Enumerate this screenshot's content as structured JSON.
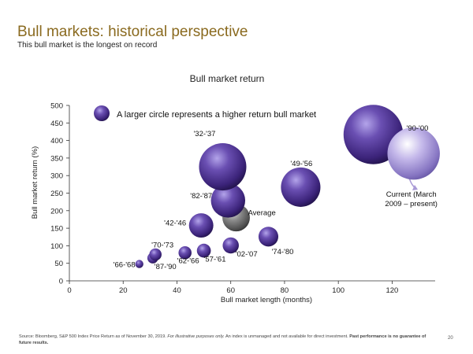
{
  "header": {
    "title": "Bull markets: historical perspective",
    "subtitle": "This bull market is the longest on record"
  },
  "legend_note": "A larger circle represents a higher return bull market",
  "footer": {
    "source_text": "Source: Bloomberg, S&P 500 Index Price Return as of November 30, 2019.",
    "illustrative_text": "For illustrative purposes only.",
    "disclaimer_text": "An index is unmanaged and not available for direct investment.",
    "bold_text": "Past performance is no guarantee of future results.",
    "page_number": "20"
  },
  "colors": {
    "title": "#8a6a1f",
    "bubble_purple": "#4b2f8c",
    "bubble_current": "#a99ad6",
    "bubble_average": "#6e6e6e",
    "current_arrow": "#a99ad6"
  },
  "chart_data": {
    "type": "scatter",
    "title": "Bull market return",
    "xlabel": "Bull market length (months)",
    "ylabel": "Bull market return (%)",
    "xlim": [
      0,
      136
    ],
    "ylim": [
      0,
      500
    ],
    "x_ticks": [
      0,
      20,
      40,
      60,
      80,
      100,
      120
    ],
    "y_ticks": [
      0,
      50,
      100,
      150,
      200,
      250,
      300,
      350,
      400,
      450,
      500
    ],
    "grid": false,
    "points": [
      {
        "label": "'66-'68",
        "x": 26,
        "y": 48,
        "color": "purple"
      },
      {
        "label": "'87-'90",
        "x": 31,
        "y": 65,
        "color": "purple"
      },
      {
        "label": "'70-'73",
        "x": 32,
        "y": 75,
        "color": "purple"
      },
      {
        "label": "'62-'66",
        "x": 43,
        "y": 80,
        "color": "purple"
      },
      {
        "label": "'57-'61",
        "x": 50,
        "y": 86,
        "color": "purple"
      },
      {
        "label": "'02-'07",
        "x": 60,
        "y": 101,
        "color": "purple"
      },
      {
        "label": "'74-'80",
        "x": 74,
        "y": 126,
        "color": "purple"
      },
      {
        "label": "'42-'46",
        "x": 49,
        "y": 158,
        "color": "purple"
      },
      {
        "label": "Average",
        "x": 62,
        "y": 180,
        "color": "grey"
      },
      {
        "label": "'82-'87",
        "x": 59,
        "y": 229,
        "color": "purple"
      },
      {
        "label": "'49-'56",
        "x": 86,
        "y": 267,
        "color": "purple"
      },
      {
        "label": "'32-'37",
        "x": 57,
        "y": 325,
        "color": "purple"
      },
      {
        "label": "'90-'00",
        "x": 113,
        "y": 417,
        "color": "purple"
      },
      {
        "label": "Current (March 2009 – present)",
        "x": 128,
        "y": 363,
        "color": "light-purple"
      }
    ]
  }
}
